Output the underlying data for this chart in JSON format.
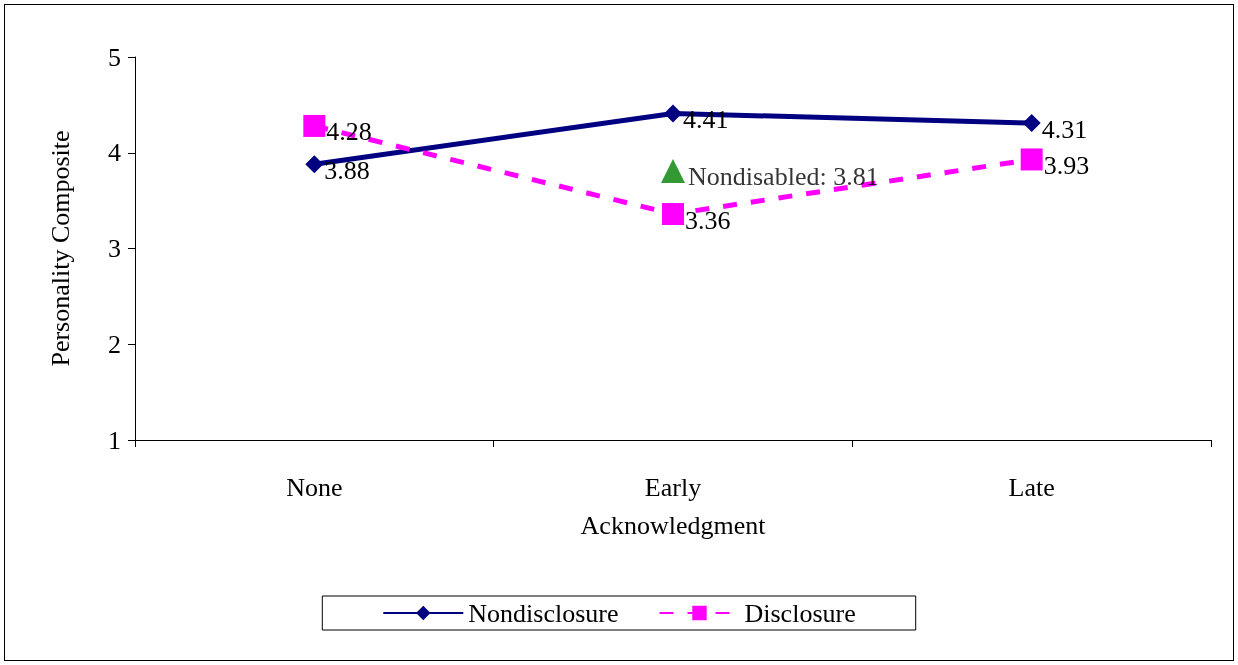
{
  "chart_data": {
    "type": "line",
    "xlabel": "Acknowledgment",
    "ylabel": "Personality Composite",
    "categories": [
      "None",
      "Early",
      "Late"
    ],
    "series": [
      {
        "name": "Nondisclosure",
        "color": "#000080",
        "values": [
          3.88,
          4.41,
          4.31
        ],
        "marker": "diamond",
        "line_style": "solid"
      },
      {
        "name": "Disclosure",
        "color": "#ff00ff",
        "values": [
          4.28,
          3.36,
          3.93
        ],
        "marker": "square",
        "line_style": "dashed"
      },
      {
        "type": "scatter",
        "color": "#008000",
        "x": [
          "Early"
        ],
        "values": [
          3.81
        ],
        "marker": "triangle",
        "value_labels": [
          "Nondisabled: 3.81"
        ]
      }
    ],
    "ylim": [
      1,
      5
    ],
    "yticks": [
      1,
      2,
      3,
      4,
      5
    ],
    "grid": false,
    "legend": "bottom",
    "data_labels": true
  }
}
